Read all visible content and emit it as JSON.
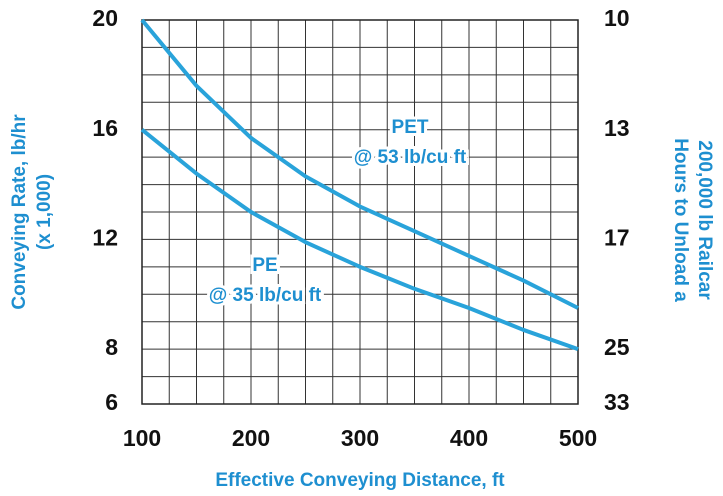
{
  "chart_data": {
    "type": "line",
    "xlabel": "Effective Conveying Distance, ft",
    "ylabel": [
      "Conveying Rate, lb/hr",
      "(x 1,000)"
    ],
    "y2label": [
      "Hours to Unload a",
      "200,000 lb Railcar"
    ],
    "x": [
      100,
      150,
      200,
      250,
      300,
      350,
      400,
      450,
      500
    ],
    "series": [
      {
        "name": "PET",
        "color": "#29a3da",
        "values": [
          20,
          17.6,
          15.7,
          14.3,
          13.2,
          12.3,
          11.4,
          10.5,
          9.5
        ]
      },
      {
        "name": "PE",
        "color": "#29a3da",
        "values": [
          16,
          14.4,
          13,
          11.9,
          11,
          10.2,
          9.5,
          8.7,
          8
        ]
      }
    ],
    "annotations": [
      {
        "lines": [
          "PET",
          "@ 53 lb/cu ft"
        ]
      },
      {
        "lines": [
          "PE",
          "@ 35 lb/cu ft"
        ]
      }
    ],
    "xlim": [
      100,
      500
    ],
    "xticks": [
      100,
      200,
      300,
      400,
      500
    ],
    "ylim": [
      6,
      20
    ],
    "yticks": [
      6,
      8,
      12,
      16,
      20
    ],
    "y2lim": [
      10,
      33.33
    ],
    "y2scale": "reciprocal",
    "y2ticks": [
      {
        "value": 10,
        "label": "10"
      },
      {
        "value": 12.5,
        "label": "13"
      },
      {
        "value": 16.67,
        "label": "17"
      },
      {
        "value": 25,
        "label": "25"
      },
      {
        "value": 33.33,
        "label": "33"
      }
    ],
    "grid": true,
    "x_minor_step": 25,
    "y_minor_step": 1
  }
}
